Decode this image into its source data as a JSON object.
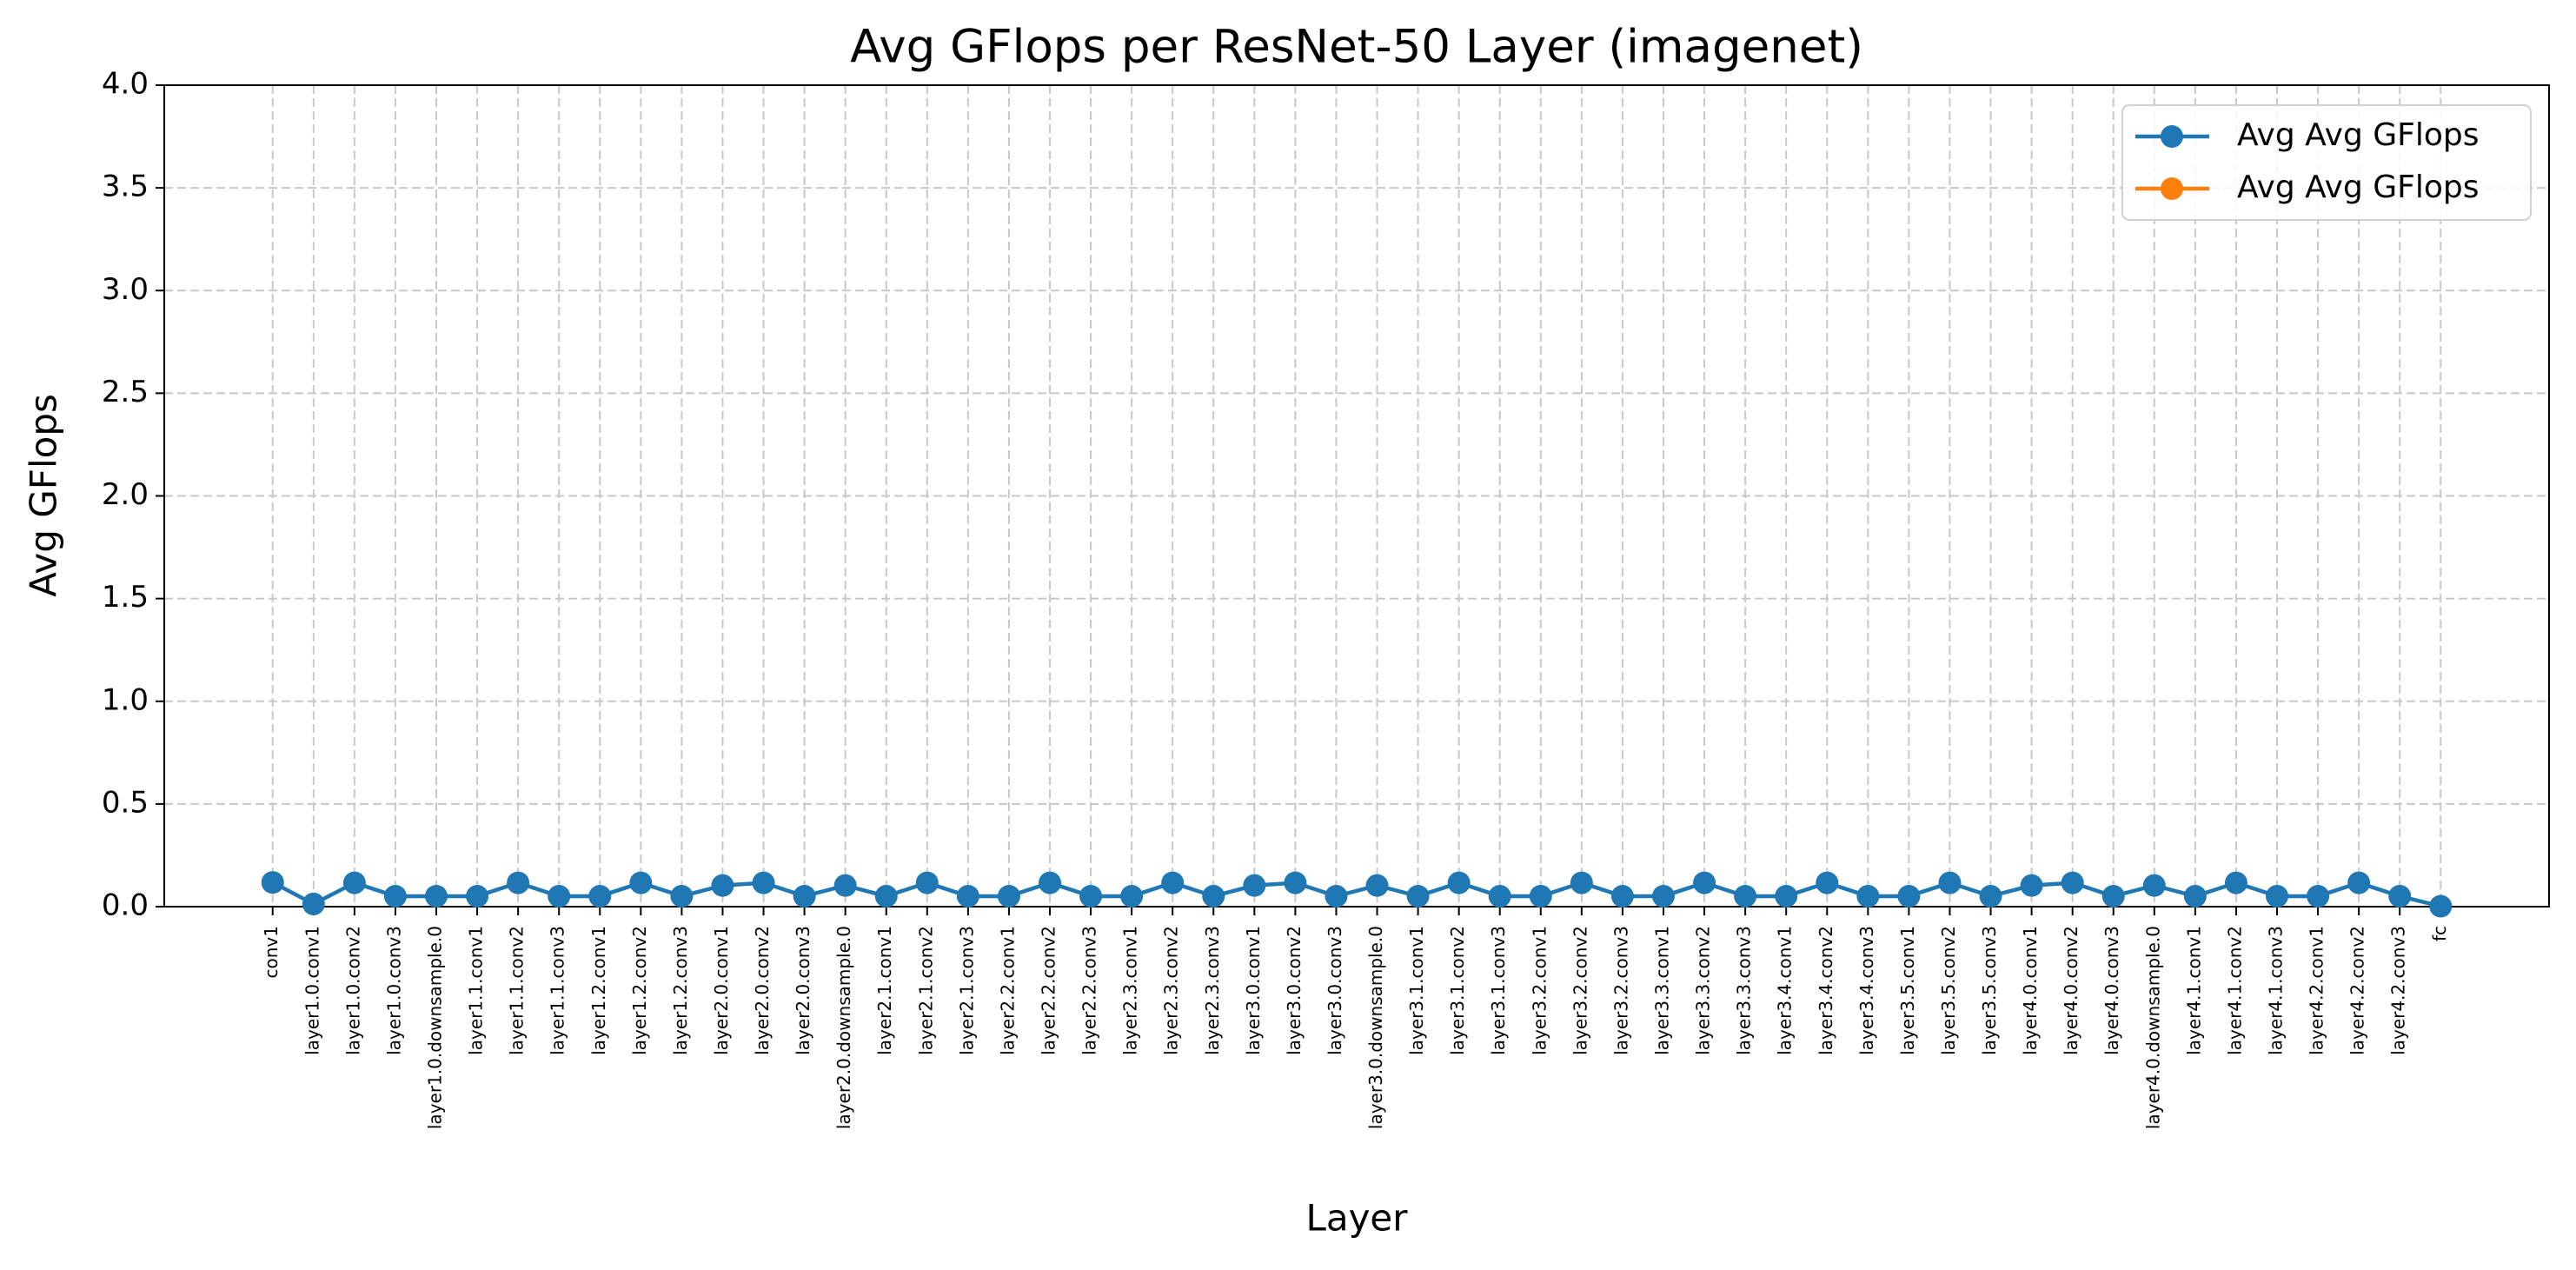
{
  "chart_data": {
    "type": "line",
    "title": "Avg GFlops per ResNet-50 Layer (imagenet)",
    "x_label": "Layer",
    "y_label": "Avg GFlops",
    "categories": [
      "conv1",
      "layer1.0.conv1",
      "layer1.0.conv2",
      "layer1.0.conv3",
      "layer1.0.downsample.0",
      "layer1.1.conv1",
      "layer1.1.conv2",
      "layer1.1.conv3",
      "layer1.2.conv1",
      "layer1.2.conv2",
      "layer1.2.conv3",
      "layer2.0.conv1",
      "layer2.0.conv2",
      "layer2.0.conv3",
      "layer2.0.downsample.0",
      "layer2.1.conv1",
      "layer2.1.conv2",
      "layer2.1.conv3",
      "layer2.2.conv1",
      "layer2.2.conv2",
      "layer2.2.conv3",
      "layer2.3.conv1",
      "layer2.3.conv2",
      "layer2.3.conv3",
      "layer3.0.conv1",
      "layer3.0.conv2",
      "layer3.0.conv3",
      "layer3.0.downsample.0",
      "layer3.1.conv1",
      "layer3.1.conv2",
      "layer3.1.conv3",
      "layer3.2.conv1",
      "layer3.2.conv2",
      "layer3.2.conv3",
      "layer3.3.conv1",
      "layer3.3.conv2",
      "layer3.3.conv3",
      "layer3.4.conv1",
      "layer3.4.conv2",
      "layer3.4.conv3",
      "layer3.5.conv1",
      "layer3.5.conv2",
      "layer3.5.conv3",
      "layer4.0.conv1",
      "layer4.0.conv2",
      "layer4.0.conv3",
      "layer4.0.downsample.0",
      "layer4.1.conv1",
      "layer4.1.conv2",
      "layer4.1.conv3",
      "layer4.2.conv1",
      "layer4.2.conv2",
      "layer4.2.conv3",
      "fc"
    ],
    "series": [
      {
        "name": "Avg Avg GFlops",
        "color": "#1f77b4",
        "values": [
          0.118,
          0.013,
          0.116,
          0.051,
          0.051,
          0.051,
          0.116,
          0.051,
          0.051,
          0.116,
          0.051,
          0.103,
          0.116,
          0.051,
          0.103,
          0.051,
          0.116,
          0.051,
          0.051,
          0.116,
          0.051,
          0.051,
          0.116,
          0.051,
          0.103,
          0.116,
          0.051,
          0.103,
          0.051,
          0.116,
          0.051,
          0.051,
          0.116,
          0.051,
          0.051,
          0.116,
          0.051,
          0.051,
          0.116,
          0.051,
          0.051,
          0.116,
          0.051,
          0.103,
          0.116,
          0.051,
          0.103,
          0.051,
          0.116,
          0.051,
          0.051,
          0.116,
          0.051,
          0.002
        ]
      },
      {
        "name": "Avg Avg GFlops",
        "color": "#ff7f0e",
        "values": [
          null,
          null,
          null,
          null,
          null,
          null,
          null,
          null,
          null,
          null,
          null,
          null,
          null,
          null,
          null,
          null,
          null,
          null,
          null,
          null,
          null,
          null,
          null,
          null,
          null,
          null,
          null,
          null,
          null,
          null,
          null,
          null,
          null,
          null,
          null,
          null,
          null,
          null,
          null,
          null,
          null,
          null,
          null,
          null,
          null,
          null,
          null,
          null,
          null,
          null,
          null,
          null,
          null,
          null
        ]
      }
    ],
    "ylim": [
      0,
      4
    ],
    "yticks": [
      {
        "value": 0,
        "label": "0.0"
      },
      0.5,
      {
        "value": 1,
        "label": "1.0"
      },
      1.5,
      {
        "value": 2,
        "label": "2.0"
      },
      2.5,
      {
        "value": 3,
        "label": "3.0"
      },
      3.5,
      {
        "value": 4,
        "label": "4.0"
      }
    ],
    "grid": true,
    "legend": "upper right"
  }
}
